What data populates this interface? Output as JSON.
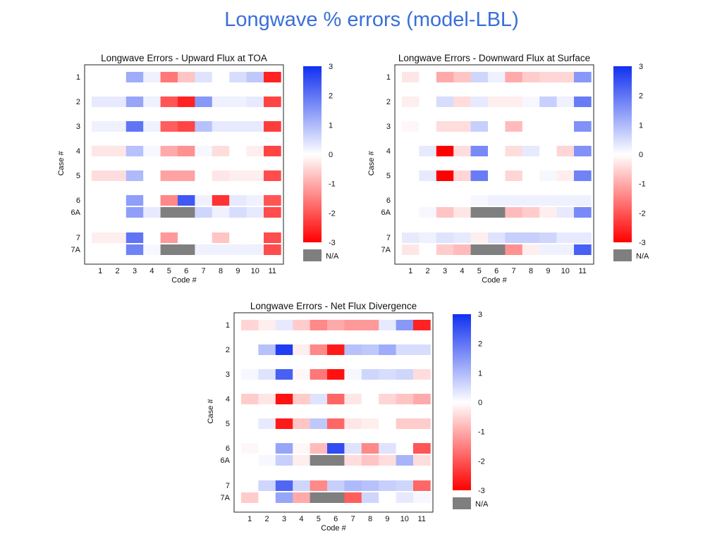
{
  "slide": {
    "title": "Longwave % errors (model-LBL)"
  },
  "colors": {
    "negative": "#ff0000",
    "zero": "#ffffff",
    "positive": "#1030f0",
    "na": "#7f7f7f"
  },
  "chart_data": [
    {
      "type": "heatmap",
      "title": "Longwave Errors - Upward Flux at TOA",
      "xlabel": "Code #",
      "ylabel": "Case #",
      "x_categories": [
        "1",
        "2",
        "3",
        "4",
        "5",
        "6",
        "7",
        "8",
        "9",
        "10",
        "11"
      ],
      "y_categories": [
        "1",
        "2",
        "3",
        "4",
        "5",
        "6",
        "6A",
        "7",
        "7A"
      ],
      "colorbar": {
        "min": -3,
        "max": 3,
        "ticks": [
          "3",
          "2",
          "1",
          "0",
          "-1",
          "-2",
          "-3"
        ],
        "na_label": "N/A"
      },
      "values": [
        [
          0,
          0,
          1.2,
          0.2,
          -1.6,
          -0.7,
          0.4,
          0,
          0.5,
          0.8,
          -2.6
        ],
        [
          0.3,
          0.3,
          1.3,
          0.2,
          -2.0,
          -2.6,
          1.5,
          0.2,
          0.2,
          0.3,
          -2.2
        ],
        [
          0.2,
          0.2,
          2.0,
          0.2,
          -1.9,
          -2.2,
          0.9,
          0.3,
          0.3,
          0.3,
          -2.3
        ],
        [
          -0.3,
          -0.3,
          0.9,
          0.1,
          -1.0,
          -1.3,
          0.1,
          -0.4,
          0,
          -0.2,
          -2.2
        ],
        [
          -0.4,
          -0.4,
          1.0,
          0,
          -1.1,
          -1.1,
          0,
          -0.3,
          -0.2,
          -0.2,
          -2.1
        ],
        [
          0,
          0,
          1.4,
          0,
          -1.4,
          2.4,
          0.2,
          -2.4,
          0.3,
          0.2,
          -2.0
        ],
        [
          0,
          0,
          1.4,
          0.3,
          null,
          null,
          0.6,
          0.2,
          0.5,
          0.3,
          -2.1
        ],
        [
          -0.2,
          -0.2,
          2.0,
          0,
          -1.2,
          0,
          0,
          -0.7,
          0,
          0,
          -2.1
        ],
        [
          0,
          0,
          1.8,
          0.1,
          null,
          null,
          0.2,
          0.2,
          0.2,
          0.2,
          -2.1
        ]
      ]
    },
    {
      "type": "heatmap",
      "title": "Longwave Errors - Downward Flux at Surface",
      "xlabel": "Code #",
      "ylabel": "Case #",
      "x_categories": [
        "1",
        "2",
        "3",
        "4",
        "5",
        "6",
        "7",
        "8",
        "9",
        "10",
        "11"
      ],
      "y_categories": [
        "1",
        "2",
        "3",
        "4",
        "5",
        "6",
        "6A",
        "7",
        "7A"
      ],
      "colorbar": {
        "min": -3,
        "max": 3,
        "ticks": [
          "3",
          "2",
          "1",
          "0",
          "-1",
          "-2",
          "-3"
        ],
        "na_label": "N/A"
      },
      "values": [
        [
          -0.3,
          0,
          -1.0,
          -0.7,
          0.6,
          0.2,
          -1.0,
          -0.6,
          -0.5,
          -0.5,
          1.5
        ],
        [
          -0.2,
          0,
          0.5,
          -0.4,
          0.3,
          -0.2,
          -0.2,
          0.1,
          0.7,
          0.2,
          1.9
        ],
        [
          -0.1,
          0,
          -0.4,
          -0.4,
          0.7,
          0,
          -0.8,
          0,
          0,
          0,
          1.6
        ],
        [
          0,
          0.3,
          -3.0,
          -0.4,
          1.7,
          0,
          -0.4,
          0.3,
          0,
          -0.5,
          1.6
        ],
        [
          0,
          0.3,
          -3.0,
          -0.5,
          1.9,
          0,
          -0.5,
          0,
          0.1,
          -0.2,
          1.8
        ],
        [
          0,
          0,
          0,
          0,
          0.1,
          0.2,
          0.2,
          0.2,
          0.2,
          0.2,
          0.2
        ],
        [
          0,
          0.1,
          -0.7,
          -0.3,
          null,
          null,
          -0.8,
          -0.6,
          -0.2,
          0.3,
          1.7
        ],
        [
          0.3,
          0.2,
          0.4,
          0.3,
          -0.2,
          0.4,
          0.7,
          0.7,
          0.6,
          0.3,
          0.3
        ],
        [
          -0.3,
          0,
          -0.6,
          -0.8,
          null,
          null,
          -1.3,
          -0.2,
          0.2,
          0.2,
          2.3
        ]
      ]
    },
    {
      "type": "heatmap",
      "title": "Longwave Errors - Net Flux Divergence",
      "xlabel": "Code #",
      "ylabel": "Case #",
      "x_categories": [
        "1",
        "2",
        "3",
        "4",
        "5",
        "6",
        "7",
        "8",
        "9",
        "10",
        "11"
      ],
      "y_categories": [
        "1",
        "2",
        "3",
        "4",
        "5",
        "6",
        "6A",
        "7",
        "7A"
      ],
      "colorbar": {
        "min": -3,
        "max": 3,
        "ticks": [
          "3",
          "2",
          "1",
          "0",
          "-1",
          "-2",
          "-3"
        ],
        "na_label": "N/A"
      },
      "values": [
        [
          -0.5,
          -0.2,
          0.3,
          -0.6,
          -1.4,
          -1.0,
          -1.2,
          -1.2,
          0.3,
          1.5,
          -2.6
        ],
        [
          0,
          0.9,
          2.8,
          -0.2,
          -1.4,
          -2.7,
          0.9,
          0.8,
          1.2,
          0.5,
          0.5
        ],
        [
          0.1,
          0.4,
          2.3,
          -0.1,
          -1.6,
          -2.8,
          0.1,
          0.6,
          0.5,
          0.6,
          -0.4
        ],
        [
          -0.6,
          -0.3,
          -2.8,
          -0.6,
          0.4,
          -1.8,
          -0.3,
          0,
          -0.5,
          -0.7,
          -1.0
        ],
        [
          0,
          0.3,
          -2.7,
          -0.7,
          0.8,
          -1.8,
          -0.3,
          -0.2,
          0,
          -0.6,
          -0.6
        ],
        [
          -0.1,
          0,
          1.3,
          -0.1,
          -0.8,
          2.6,
          0.4,
          -1.4,
          0.4,
          0,
          -2.0
        ],
        [
          0,
          0.1,
          0.7,
          -0.2,
          null,
          null,
          -0.4,
          -0.7,
          -0.4,
          1.1,
          -0.4
        ],
        [
          0,
          0.6,
          2.2,
          0.6,
          -1.4,
          0.7,
          1.0,
          0.9,
          0.7,
          0.6,
          -1.8
        ],
        [
          -0.6,
          0,
          1.3,
          -1.0,
          null,
          null,
          -1.9,
          0.6,
          0,
          0.3,
          0.1
        ]
      ]
    }
  ]
}
